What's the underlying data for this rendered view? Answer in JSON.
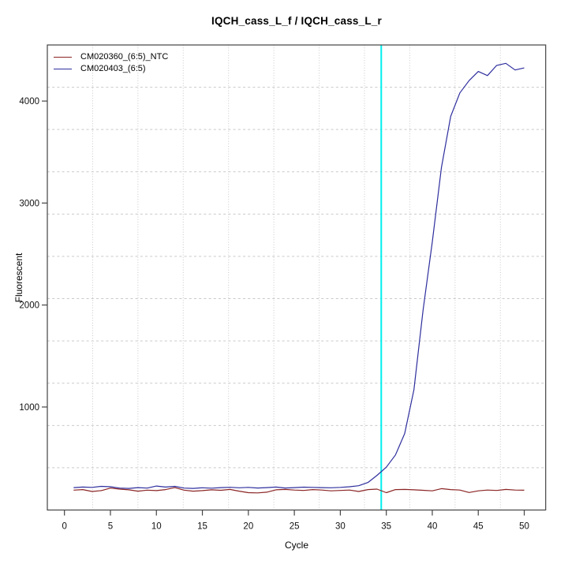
{
  "title": "IQCH_cass_L_f / IQCH_cass_L_r",
  "chart_data": {
    "type": "line",
    "title": "IQCH_cass_L_f / IQCH_cass_L_r",
    "xlabel": "Cycle",
    "ylabel": "Fluorescent",
    "x_ticks": [
      0,
      5,
      10,
      15,
      20,
      25,
      30,
      35,
      40,
      45,
      50
    ],
    "y_ticks": [
      1000,
      2000,
      3000,
      4000
    ],
    "xlim": [
      -1.86,
      52.33
    ],
    "ylim": [
      -10,
      4550
    ],
    "grid": {
      "on": true,
      "divisions": 11,
      "color": "#c9c9c9"
    },
    "legend_position": "top-left",
    "threshold_line": {
      "x": 34.45,
      "color": "#00eeee",
      "label": "threshold-cycle-marker"
    },
    "x": [
      1,
      2,
      3,
      4,
      5,
      6,
      7,
      8,
      9,
      10,
      11,
      12,
      13,
      14,
      15,
      16,
      17,
      18,
      19,
      20,
      21,
      22,
      23,
      24,
      25,
      26,
      27,
      28,
      29,
      30,
      31,
      32,
      33,
      34,
      35,
      36,
      37,
      38,
      39,
      40,
      41,
      42,
      43,
      44,
      45,
      46,
      47,
      48,
      49,
      50
    ],
    "series": [
      {
        "name": "CM020360_(6:5)_NTC",
        "color": "#8b2424",
        "values": [
          185,
          190,
          172,
          180,
          205,
          195,
          188,
          175,
          185,
          180,
          190,
          210,
          185,
          175,
          180,
          188,
          183,
          192,
          175,
          160,
          158,
          165,
          188,
          192,
          186,
          182,
          190,
          186,
          178,
          182,
          186,
          172,
          190,
          195,
          160,
          190,
          192,
          188,
          183,
          178,
          200,
          190,
          186,
          162,
          178,
          186,
          182,
          192,
          186,
          184
        ]
      },
      {
        "name": "CM020403_(6:5)",
        "color": "#2e2e9e",
        "values": [
          210,
          215,
          212,
          222,
          218,
          205,
          202,
          210,
          205,
          225,
          215,
          222,
          205,
          202,
          208,
          204,
          210,
          213,
          208,
          212,
          206,
          210,
          215,
          206,
          210,
          214,
          212,
          210,
          208,
          212,
          218,
          228,
          260,
          330,
          410,
          530,
          740,
          1170,
          1950,
          2620,
          3350,
          3850,
          4080,
          4200,
          4290,
          4250,
          4350,
          4370,
          4305,
          4325
        ]
      }
    ]
  },
  "axis": {
    "border_color": "#444444",
    "tick_color": "#444444",
    "label_color": "#111111"
  }
}
